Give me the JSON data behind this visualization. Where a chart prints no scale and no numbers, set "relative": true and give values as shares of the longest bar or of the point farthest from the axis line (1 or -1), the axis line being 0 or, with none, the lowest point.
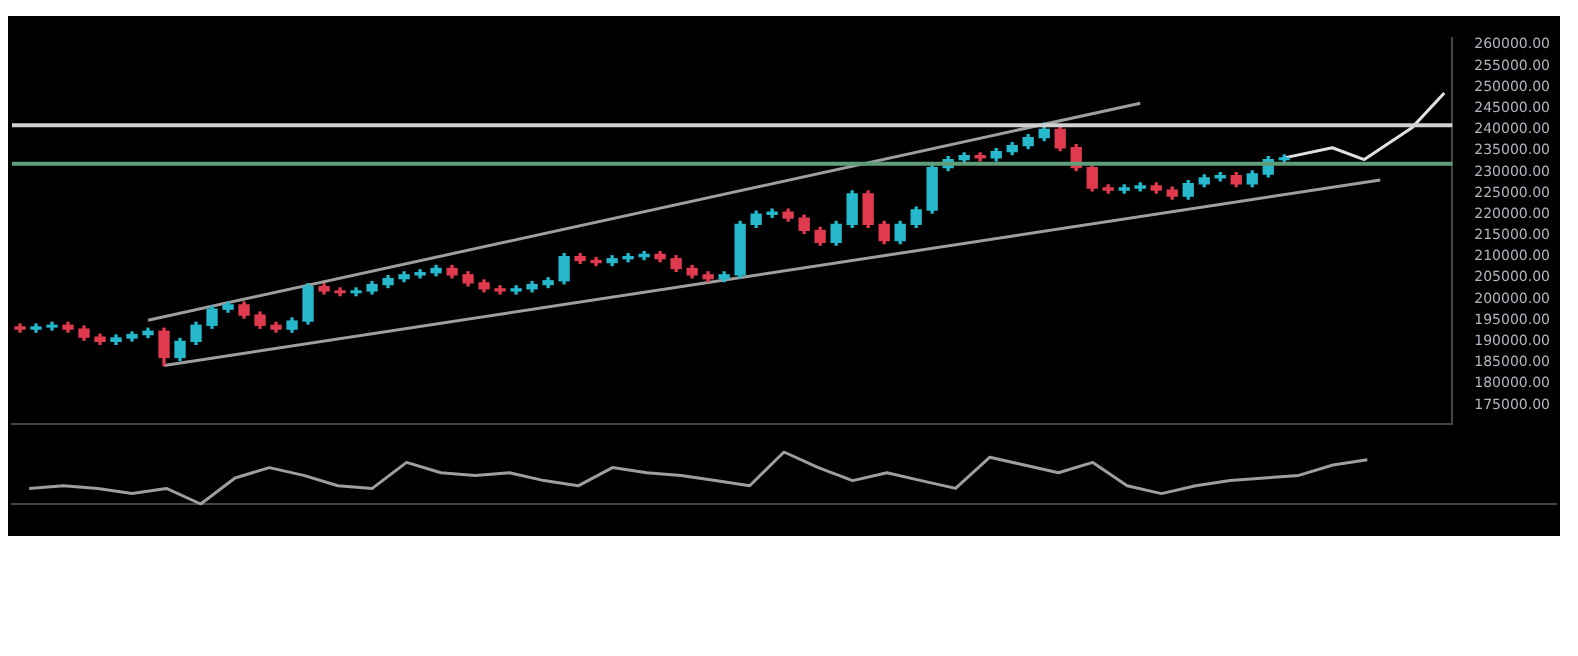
{
  "chart_data": [
    {
      "type": "candlestick",
      "categories": [
        null,
        null,
        null,
        null,
        null,
        null,
        null,
        null,
        null,
        null,
        null,
        null,
        null,
        null,
        null,
        null,
        null,
        null,
        null,
        null,
        null,
        null,
        null,
        null,
        null,
        null,
        null,
        null,
        null,
        null,
        null,
        null,
        null,
        null,
        null,
        null,
        null,
        null,
        null,
        null,
        null,
        null,
        null,
        null,
        null,
        null,
        null,
        null,
        null,
        null,
        null,
        null,
        null,
        null,
        null,
        null,
        null,
        null,
        null,
        null,
        null,
        null,
        null,
        null,
        null,
        null,
        null,
        null,
        null,
        null,
        null,
        null,
        null,
        null,
        null,
        null,
        null,
        null,
        null,
        null,
        null,
        null,
        null,
        null,
        null,
        null,
        null,
        null,
        null,
        null
      ],
      "ohlc": [
        [
          193400,
          194100,
          192200,
          192900
        ],
        [
          192900,
          194100,
          192200,
          193400
        ],
        [
          193400,
          194500,
          192700,
          193800
        ],
        [
          193800,
          194500,
          192200,
          192900
        ],
        [
          192900,
          193600,
          190300,
          191000
        ],
        [
          191000,
          191700,
          189300,
          190000
        ],
        [
          190000,
          191500,
          189300,
          190800
        ],
        [
          190800,
          192200,
          190100,
          191600
        ],
        [
          191600,
          193100,
          190900,
          192400
        ],
        [
          192400,
          193100,
          184300,
          186200
        ],
        [
          186200,
          190700,
          185500,
          190000
        ],
        [
          190000,
          194500,
          189300,
          193800
        ],
        [
          193800,
          198300,
          193100,
          197600
        ],
        [
          197600,
          199300,
          196900,
          198600
        ],
        [
          198600,
          199300,
          195500,
          196200
        ],
        [
          196200,
          196900,
          193100,
          193800
        ],
        [
          193800,
          194500,
          192200,
          192900
        ],
        [
          192900,
          195500,
          192200,
          194800
        ],
        [
          194800,
          203600,
          194100,
          202900
        ],
        [
          202900,
          203600,
          201200,
          201900
        ],
        [
          201900,
          202600,
          200800,
          201500
        ],
        [
          201500,
          202600,
          200800,
          201900
        ],
        [
          201900,
          204100,
          201200,
          203400
        ],
        [
          203400,
          205500,
          202700,
          204800
        ],
        [
          204800,
          206400,
          204100,
          205700
        ],
        [
          205700,
          206900,
          205000,
          206200
        ],
        [
          206200,
          207900,
          205500,
          207200
        ],
        [
          207200,
          207900,
          205000,
          205700
        ],
        [
          205700,
          206400,
          203100,
          203800
        ],
        [
          203800,
          204500,
          201700,
          202400
        ],
        [
          202400,
          203100,
          201200,
          201900
        ],
        [
          201900,
          203100,
          201200,
          202400
        ],
        [
          202400,
          204100,
          201700,
          203400
        ],
        [
          203400,
          205000,
          202700,
          204300
        ],
        [
          204300,
          210700,
          203600,
          210000
        ],
        [
          210000,
          210700,
          208400,
          209100
        ],
        [
          209100,
          209800,
          207900,
          208600
        ],
        [
          208600,
          210200,
          207900,
          209500
        ],
        [
          209500,
          210700,
          208800,
          210000
        ],
        [
          210000,
          211200,
          209300,
          210500
        ],
        [
          210500,
          211200,
          208800,
          209500
        ],
        [
          209500,
          210200,
          206500,
          207200
        ],
        [
          207200,
          207900,
          205000,
          205700
        ],
        [
          205700,
          206400,
          204100,
          204800
        ],
        [
          204800,
          206400,
          204100,
          205700
        ],
        [
          205700,
          218300,
          205000,
          217600
        ],
        [
          217600,
          220700,
          216900,
          220000
        ],
        [
          220000,
          221200,
          219300,
          220500
        ],
        [
          220500,
          221200,
          218400,
          219100
        ],
        [
          219100,
          219800,
          215500,
          216200
        ],
        [
          216200,
          216900,
          212700,
          213400
        ],
        [
          213400,
          218300,
          212700,
          217600
        ],
        [
          217600,
          225500,
          216900,
          224800
        ],
        [
          224800,
          225500,
          216900,
          217600
        ],
        [
          217600,
          218300,
          213100,
          213800
        ],
        [
          213800,
          218300,
          213100,
          217600
        ],
        [
          217600,
          221700,
          216900,
          221000
        ],
        [
          221000,
          231700,
          220300,
          231000
        ],
        [
          231000,
          233600,
          230300,
          232900
        ],
        [
          232900,
          234500,
          232200,
          233800
        ],
        [
          233800,
          234500,
          232600,
          233300
        ],
        [
          233300,
          235500,
          232600,
          234800
        ],
        [
          234800,
          236900,
          234100,
          236200
        ],
        [
          236200,
          238800,
          235500,
          238100
        ],
        [
          238100,
          241500,
          237400,
          240000
        ],
        [
          240000,
          240700,
          235000,
          235700
        ],
        [
          235700,
          236400,
          230300,
          231000
        ],
        [
          231000,
          231700,
          225500,
          226200
        ],
        [
          226200,
          226900,
          225000,
          225700
        ],
        [
          225700,
          226900,
          225000,
          226200
        ],
        [
          226200,
          227400,
          225500,
          226700
        ],
        [
          226700,
          227400,
          225000,
          225700
        ],
        [
          225700,
          226400,
          223600,
          224300
        ],
        [
          224300,
          227900,
          223600,
          227200
        ],
        [
          227200,
          229300,
          226500,
          228600
        ],
        [
          228600,
          229800,
          227900,
          229100
        ],
        [
          229100,
          229800,
          226500,
          227200
        ],
        [
          227200,
          230200,
          226500,
          229500
        ],
        [
          229500,
          233600,
          228800,
          232900
        ],
        [
          232900,
          234000,
          232200,
          233300
        ],
        null,
        null,
        null,
        null,
        null,
        null,
        null,
        null,
        null,
        null
      ],
      "series": [
        {
          "type": "line",
          "color": "#9e9e9e",
          "values": [
            null,
            null,
            null,
            null,
            null,
            null,
            null,
            null,
            195000,
            null,
            null,
            null,
            null,
            null,
            null,
            null,
            null,
            null,
            null,
            null,
            null,
            null,
            null,
            null,
            null,
            null,
            null,
            null,
            null,
            null,
            null,
            null,
            null,
            null,
            null,
            null,
            null,
            null,
            null,
            null,
            null,
            null,
            null,
            null,
            null,
            null,
            null,
            null,
            null,
            null,
            null,
            null,
            null,
            null,
            null,
            null,
            null,
            null,
            null,
            null,
            null,
            null,
            null,
            null,
            null,
            null,
            null,
            null,
            null,
            null,
            246200,
            null,
            null,
            null,
            null,
            null,
            null,
            null,
            null,
            null,
            null,
            null,
            null,
            null,
            null,
            null,
            null,
            null,
            null,
            null
          ]
        },
        {
          "type": "line",
          "color": "#9e9e9e",
          "values": [
            null,
            null,
            null,
            null,
            null,
            null,
            null,
            null,
            null,
            184300,
            null,
            null,
            null,
            null,
            null,
            null,
            null,
            null,
            null,
            null,
            null,
            null,
            null,
            null,
            null,
            null,
            null,
            null,
            null,
            null,
            null,
            null,
            null,
            null,
            null,
            null,
            null,
            null,
            null,
            null,
            null,
            null,
            null,
            null,
            null,
            null,
            null,
            null,
            null,
            null,
            null,
            null,
            null,
            null,
            null,
            null,
            null,
            null,
            null,
            null,
            null,
            null,
            null,
            null,
            null,
            null,
            null,
            null,
            null,
            null,
            null,
            null,
            null,
            null,
            null,
            null,
            null,
            null,
            null,
            null,
            null,
            null,
            null,
            null,
            null,
            228100,
            null,
            null,
            null,
            null
          ]
        },
        {
          "type": "line",
          "color": "#e0e0e0",
          "values": [
            null,
            null,
            null,
            null,
            null,
            null,
            null,
            null,
            null,
            null,
            null,
            null,
            null,
            null,
            null,
            null,
            null,
            null,
            null,
            null,
            null,
            null,
            null,
            null,
            null,
            null,
            null,
            null,
            null,
            null,
            null,
            null,
            null,
            null,
            null,
            null,
            null,
            null,
            null,
            null,
            null,
            null,
            null,
            null,
            null,
            null,
            null,
            null,
            null,
            null,
            null,
            null,
            null,
            null,
            null,
            null,
            null,
            null,
            null,
            null,
            null,
            null,
            null,
            null,
            null,
            null,
            null,
            null,
            null,
            null,
            null,
            null,
            null,
            null,
            null,
            null,
            null,
            null,
            null,
            233300,
            null,
            null,
            235700,
            null,
            232900,
            null,
            null,
            240500,
            null,
            248600
          ]
        }
      ],
      "ref_lines": [
        {
          "axis": "y",
          "value": 231900,
          "color": "#5f9e7a"
        },
        {
          "axis": "y",
          "value": 241000,
          "color": "#d0d0d0"
        }
      ],
      "ylim": [
        170500,
        261500
      ],
      "yticks": [
        {
          "value": 175000,
          "label": "175000.00"
        },
        {
          "value": 180000,
          "label": "180000.00"
        },
        {
          "value": 185000,
          "label": "185000.00"
        },
        {
          "value": 190000,
          "label": "190000.00"
        },
        {
          "value": 195000,
          "label": "195000.00"
        },
        {
          "value": 200000,
          "label": "200000.00"
        },
        {
          "value": 205000,
          "label": "205000.00"
        },
        {
          "value": 210000,
          "label": "210000.00"
        },
        {
          "value": 215000,
          "label": "215000.00"
        },
        {
          "value": 220000,
          "label": "220000.00"
        },
        {
          "value": 225000,
          "label": "225000.00"
        },
        {
          "value": 230000,
          "label": "230000.00"
        },
        {
          "value": 235000,
          "label": "235000.00"
        },
        {
          "value": 240000,
          "label": "240000.00"
        },
        {
          "value": 245000,
          "label": "245000.00"
        },
        {
          "value": 250000,
          "label": "250000.00"
        },
        {
          "value": 255000,
          "label": "255000.00"
        },
        {
          "value": 260000,
          "label": "260000.00"
        }
      ],
      "tick_labels": "y",
      "legend": false,
      "grid": false
    },
    {
      "type": "line",
      "relative": true,
      "categories": [
        null,
        null,
        null,
        null,
        null,
        null,
        null,
        null,
        null,
        null,
        null,
        null,
        null,
        null,
        null,
        null,
        null,
        null,
        null,
        null,
        null,
        null,
        null,
        null,
        null,
        null,
        null,
        null,
        null,
        null,
        null,
        null,
        null,
        null,
        null,
        null,
        null,
        null,
        null,
        null,
        null,
        null,
        null,
        null,
        null
      ],
      "series": [
        {
          "color": "#9e9e9e",
          "values": [
            0.3,
            0.35,
            0.3,
            0.2,
            0.3,
            0.0,
            0.5,
            0.7,
            0.55,
            0.35,
            0.3,
            0.8,
            0.6,
            0.55,
            0.6,
            0.45,
            0.35,
            0.7,
            0.6,
            0.55,
            0.45,
            0.35,
            1.0,
            0.7,
            0.45,
            0.6,
            0.45,
            0.3,
            0.9,
            0.75,
            0.6,
            0.8,
            0.35,
            0.2,
            0.35,
            0.45,
            0.5,
            0.55,
            0.75,
            0.85,
            null,
            null,
            null,
            null,
            null
          ]
        }
      ],
      "tick_labels": false,
      "legend": false,
      "grid": false
    }
  ]
}
